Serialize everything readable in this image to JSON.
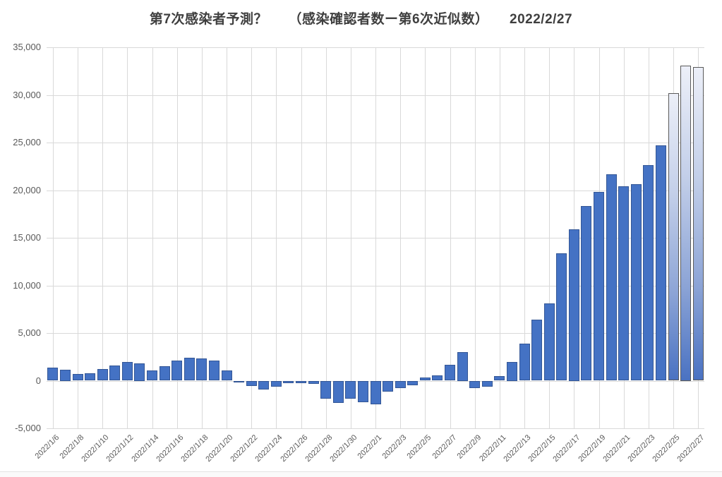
{
  "title": "第7次感染者予測？　　（感染確認者数ー第6次近似数）　　2022/2/27",
  "chart_data": {
    "type": "bar",
    "title": "第7次感染者予測？　（感染確認者数ー第6次近似数）　2022/2/27",
    "categories": [
      "2022/1/6",
      "2022/1/7",
      "2022/1/8",
      "2022/1/9",
      "2022/1/10",
      "2022/1/11",
      "2022/1/12",
      "2022/1/13",
      "2022/1/14",
      "2022/1/15",
      "2022/1/16",
      "2022/1/17",
      "2022/1/18",
      "2022/1/19",
      "2022/1/20",
      "2022/1/21",
      "2022/1/22",
      "2022/1/23",
      "2022/1/24",
      "2022/1/25",
      "2022/1/26",
      "2022/1/27",
      "2022/1/28",
      "2022/1/29",
      "2022/1/30",
      "2022/1/31",
      "2022/2/1",
      "2022/2/2",
      "2022/2/3",
      "2022/2/4",
      "2022/2/5",
      "2022/2/6",
      "2022/2/7",
      "2022/2/8",
      "2022/2/9",
      "2022/2/10",
      "2022/2/11",
      "2022/2/12",
      "2022/2/13",
      "2022/2/14",
      "2022/2/15",
      "2022/2/16",
      "2022/2/17",
      "2022/2/18",
      "2022/2/19",
      "2022/2/20",
      "2022/2/21",
      "2022/2/22",
      "2022/2/23",
      "2022/2/24",
      "2022/2/25",
      "2022/2/26",
      "2022/2/27"
    ],
    "values": [
      1350,
      1150,
      700,
      800,
      1200,
      1600,
      1950,
      1850,
      1100,
      1550,
      2100,
      2400,
      2300,
      2100,
      1050,
      -150,
      -550,
      -900,
      -600,
      -280,
      -280,
      -300,
      -1850,
      -2350,
      -1850,
      -2250,
      -2500,
      -1150,
      -750,
      -500,
      350,
      550,
      1700,
      3000,
      -800,
      -650,
      450,
      2000,
      3900,
      6400,
      8100,
      13400,
      15900,
      18300,
      19800,
      21700,
      20400,
      20600,
      22600,
      24700,
      30200,
      33100,
      32900
    ],
    "forecast_start_index": 50,
    "xlabel": "",
    "ylabel": "",
    "ylim": [
      -5000,
      35000
    ],
    "y_tick_step": 5000,
    "x_tick_interval": 2,
    "grid": true,
    "legend": "none",
    "colors": {
      "bar_fill": "#4472C4",
      "bar_border": "#2F5597",
      "forecast_fill_top": "#ECEFF8",
      "forecast_fill_bottom": "#4A72C2",
      "forecast_border": "#5A5A5A",
      "gridline": "#D9D9D9",
      "axis_text": "#595959",
      "title_text": "#3F3F3F"
    }
  }
}
